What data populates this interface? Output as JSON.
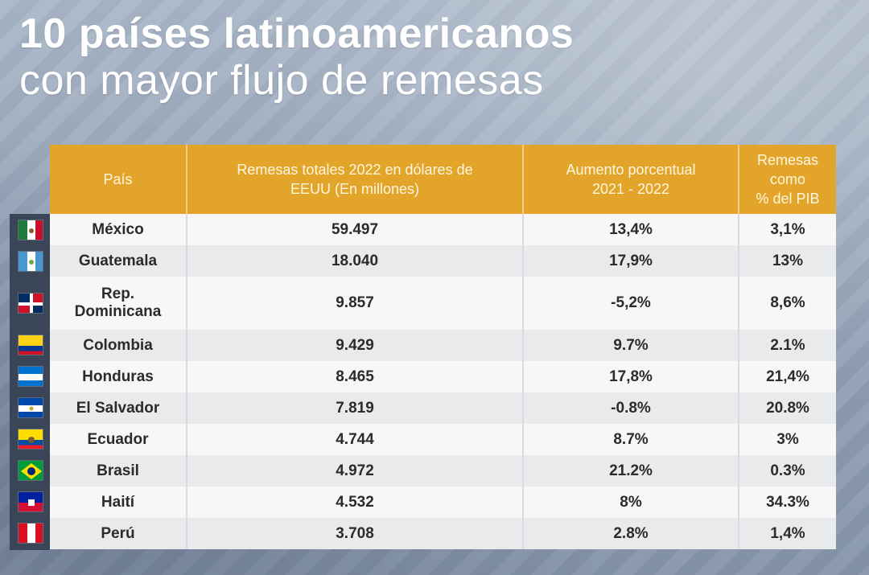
{
  "title": {
    "line1": "10 países latinoamericanos",
    "line2": "con mayor flujo de remesas"
  },
  "chart_data": {
    "type": "table",
    "title": "10 países latinoamericanos con mayor flujo de remesas",
    "columns": [
      "País",
      "Remesas totales 2022 en dólares de EEUU (En millones)",
      "Aumento porcentual 2021 - 2022",
      "Remesas como % del PIB"
    ],
    "header": {
      "col1": "País",
      "col2_l1": "Remesas totales 2022 en dólares de",
      "col2_l2": "EEUU (En millones)",
      "col3_l1": "Aumento porcentual",
      "col3_l2": "2021 - 2022",
      "col4_l1": "Remesas",
      "col4_l2": "como",
      "col4_l3": "% del PIB"
    },
    "rows": [
      {
        "country": "México",
        "remesas": "59.497",
        "aumento": "13,4%",
        "pib": "3,1%",
        "remesas_value": 59497,
        "aumento_value": 13.4,
        "pib_value": 3.1
      },
      {
        "country": "Guatemala",
        "remesas": "18.040",
        "aumento": "17,9%",
        "pib": "13%",
        "remesas_value": 18040,
        "aumento_value": 17.9,
        "pib_value": 13
      },
      {
        "country": "Rep.",
        "country_l2": "Dominicana",
        "remesas": "9.857",
        "aumento": "-5,2%",
        "pib": "8,6%",
        "remesas_value": 9857,
        "aumento_value": -5.2,
        "pib_value": 8.6
      },
      {
        "country": "Colombia",
        "remesas": "9.429",
        "aumento": "9.7%",
        "pib": "2.1%",
        "remesas_value": 9429,
        "aumento_value": 9.7,
        "pib_value": 2.1
      },
      {
        "country": "Honduras",
        "remesas": "8.465",
        "aumento": "17,8%",
        "pib": "21,4%",
        "remesas_value": 8465,
        "aumento_value": 17.8,
        "pib_value": 21.4
      },
      {
        "country": "El Salvador",
        "remesas": "7.819",
        "aumento": "-0.8%",
        "pib": "20.8%",
        "remesas_value": 7819,
        "aumento_value": -0.8,
        "pib_value": 20.8
      },
      {
        "country": "Ecuador",
        "remesas": "4.744",
        "aumento": "8.7%",
        "pib": "3%",
        "remesas_value": 4744,
        "aumento_value": 8.7,
        "pib_value": 3
      },
      {
        "country": "Brasil",
        "remesas": "4.972",
        "aumento": "21.2%",
        "pib": "0.3%",
        "remesas_value": 4972,
        "aumento_value": 21.2,
        "pib_value": 0.3
      },
      {
        "country": "Haití",
        "remesas": "4.532",
        "aumento": "8%",
        "pib": "34.3%",
        "remesas_value": 4532,
        "aumento_value": 8,
        "pib_value": 34.3
      },
      {
        "country": "Perú",
        "remesas": "3.708",
        "aumento": "2.8%",
        "pib": "1,4%",
        "remesas_value": 3708,
        "aumento_value": 2.8,
        "pib_value": 1.4
      }
    ]
  },
  "flags": [
    {
      "name": "mexico-flag-icon",
      "colors": [
        "#1f7a3a",
        "#ffffff",
        "#c8102e"
      ]
    },
    {
      "name": "guatemala-flag-icon",
      "colors": [
        "#4997d0",
        "#ffffff",
        "#4997d0"
      ]
    },
    {
      "name": "dominican-republic-flag-icon",
      "colors": [
        "#002d62",
        "#ce1126",
        "#ffffff"
      ]
    },
    {
      "name": "colombia-flag-icon",
      "colors": [
        "#fcd116",
        "#003893",
        "#ce1126"
      ]
    },
    {
      "name": "honduras-flag-icon",
      "colors": [
        "#0073cf",
        "#ffffff",
        "#0073cf"
      ]
    },
    {
      "name": "el-salvador-flag-icon",
      "colors": [
        "#0047ab",
        "#ffffff",
        "#0047ab"
      ]
    },
    {
      "name": "ecuador-flag-icon",
      "colors": [
        "#ffdd00",
        "#034ea2",
        "#ed1c24"
      ]
    },
    {
      "name": "brazil-flag-icon",
      "colors": [
        "#009c3b",
        "#ffdf00",
        "#002776"
      ]
    },
    {
      "name": "haiti-flag-icon",
      "colors": [
        "#00209f",
        "#d21034",
        "#ffffff"
      ]
    },
    {
      "name": "peru-flag-icon",
      "colors": [
        "#d91023",
        "#ffffff",
        "#d91023"
      ]
    }
  ],
  "colors": {
    "header_bg": "#e2a52a",
    "row_light": "#f7f7f8",
    "row_dark": "#e9eaec",
    "flag_column": "#3a4658"
  }
}
